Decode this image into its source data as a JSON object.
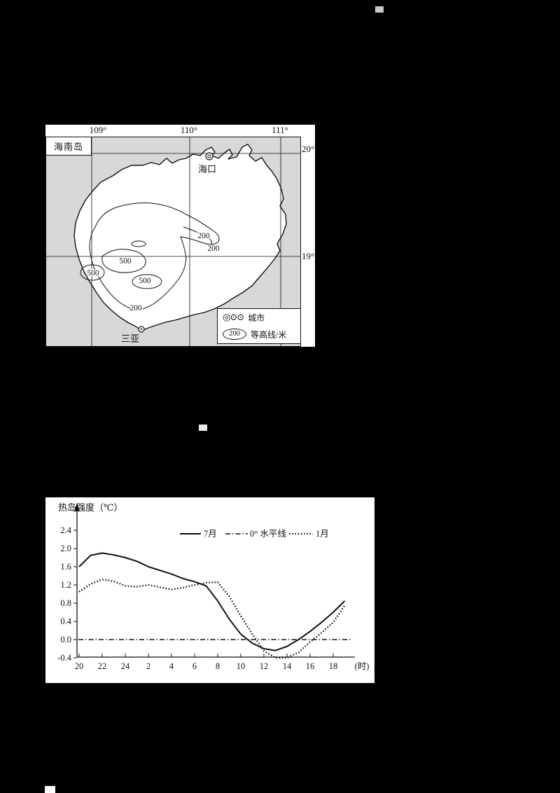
{
  "colors": {
    "page_bg": "#000000",
    "panel_bg": "#ffffff",
    "map_bg": "#d8d8d8",
    "ink": "#111111"
  },
  "map": {
    "region_label": "海南岛",
    "lon_labels": [
      "109°",
      "110°",
      "111°"
    ],
    "lat_labels": [
      "20°",
      "19°"
    ],
    "cities": [
      {
        "name": "海口"
      },
      {
        "name": "三亚"
      }
    ],
    "contour_labels": [
      "200",
      "200",
      "500",
      "500",
      "500",
      "200"
    ],
    "legend": {
      "city_symbols": "◎⊙⊙",
      "city_label": "城市",
      "contour_sample": "200",
      "contour_label": "等高线/米"
    }
  },
  "chart_data": {
    "type": "line",
    "title": "热岛强度（℃）",
    "ylabel": "热岛强度（℃）",
    "x_unit_label": "(时)",
    "xlabel": "时",
    "grid": false,
    "legend_position": "top",
    "ylim": [
      -0.4,
      2.4
    ],
    "y_tick_values": [
      2.4,
      2.0,
      1.6,
      1.2,
      0.8,
      0.4,
      0.0,
      -0.4
    ],
    "y_tick_labels": [
      "2.4",
      "2.0",
      "1.6",
      "1.2",
      "0.8",
      "0.4",
      "0.0",
      "-0.4"
    ],
    "x_tick_labels": [
      "20",
      "22",
      "24",
      "2",
      "4",
      "6",
      "8",
      "10",
      "12",
      "14",
      "16",
      "18"
    ],
    "hours": [
      20,
      21,
      22,
      23,
      24,
      1,
      2,
      3,
      4,
      5,
      6,
      7,
      8,
      9,
      10,
      11,
      12,
      13,
      14,
      15,
      16,
      17,
      18,
      19
    ],
    "series": [
      {
        "name": "7月",
        "style": "solid",
        "values": [
          1.6,
          1.85,
          1.9,
          1.86,
          1.8,
          1.72,
          1.6,
          1.52,
          1.44,
          1.34,
          1.27,
          1.18,
          0.85,
          0.45,
          0.12,
          -0.08,
          -0.2,
          -0.24,
          -0.15,
          0.0,
          0.18,
          0.38,
          0.6,
          0.85
        ]
      },
      {
        "name": "0° 水平线",
        "style": "dashdot",
        "values": [
          0,
          0,
          0,
          0,
          0,
          0,
          0,
          0,
          0,
          0,
          0,
          0,
          0,
          0,
          0,
          0,
          0,
          0,
          0,
          0,
          0,
          0,
          0,
          0
        ]
      },
      {
        "name": "1月",
        "style": "dotted",
        "values": [
          1.05,
          1.22,
          1.32,
          1.28,
          1.18,
          1.16,
          1.2,
          1.15,
          1.1,
          1.14,
          1.2,
          1.25,
          1.26,
          0.95,
          0.52,
          0.12,
          -0.25,
          -0.4,
          -0.4,
          -0.28,
          -0.05,
          0.15,
          0.38,
          0.75
        ]
      }
    ]
  }
}
